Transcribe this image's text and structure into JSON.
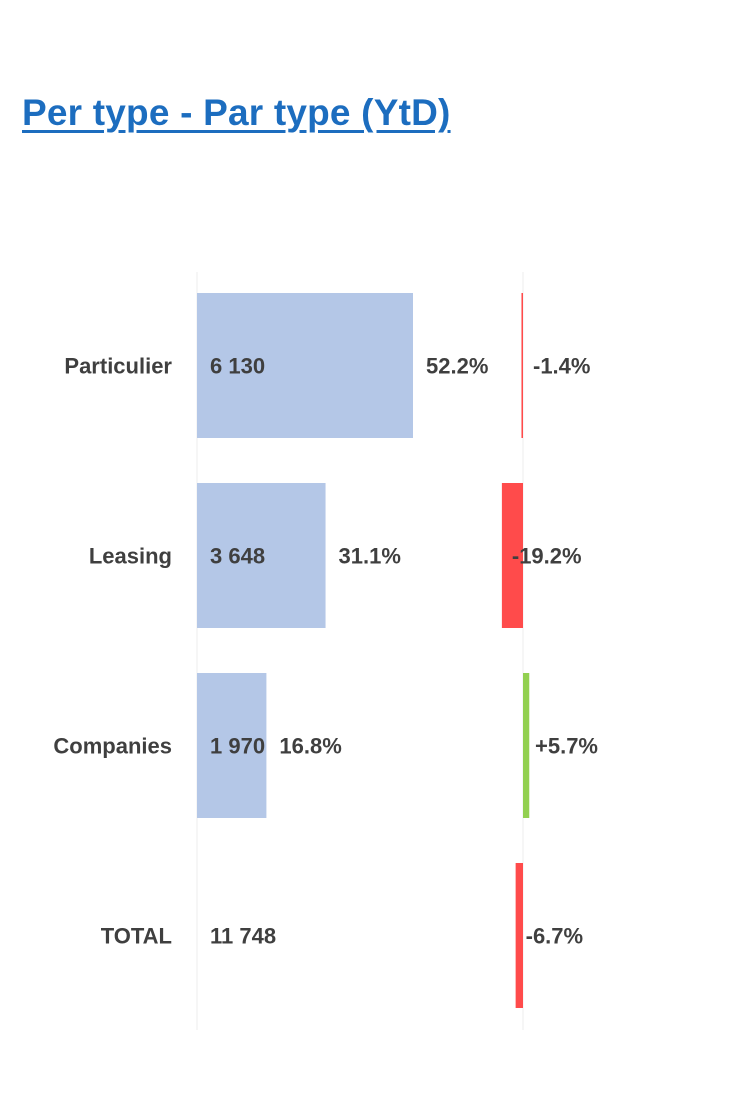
{
  "title": "Per type - Par type (YtD)",
  "chart_data": {
    "type": "bar",
    "orientation": "horizontal",
    "categories": [
      "Particulier",
      "Leasing",
      "Companies",
      "TOTAL"
    ],
    "series": [
      {
        "values": [
          6130,
          3648,
          1970,
          null
        ],
        "value_labels": [
          "6 130",
          "3 648",
          "1 970",
          "11 748"
        ],
        "share_labels": [
          "52.2%",
          "31.1%",
          "16.8%",
          ""
        ],
        "shares": [
          52.2,
          31.1,
          16.8,
          null
        ],
        "color": "#b4c7e7"
      },
      {
        "values": [
          -1.4,
          -19.2,
          5.7,
          -6.7
        ],
        "value_labels": [
          "-1.4%",
          "-19.2%",
          "+5.7%",
          "-6.7%"
        ],
        "positive_color": "#92d050",
        "negative_color": "#ff4b4b"
      }
    ],
    "total": 11748,
    "grid": false,
    "legend": "none"
  }
}
